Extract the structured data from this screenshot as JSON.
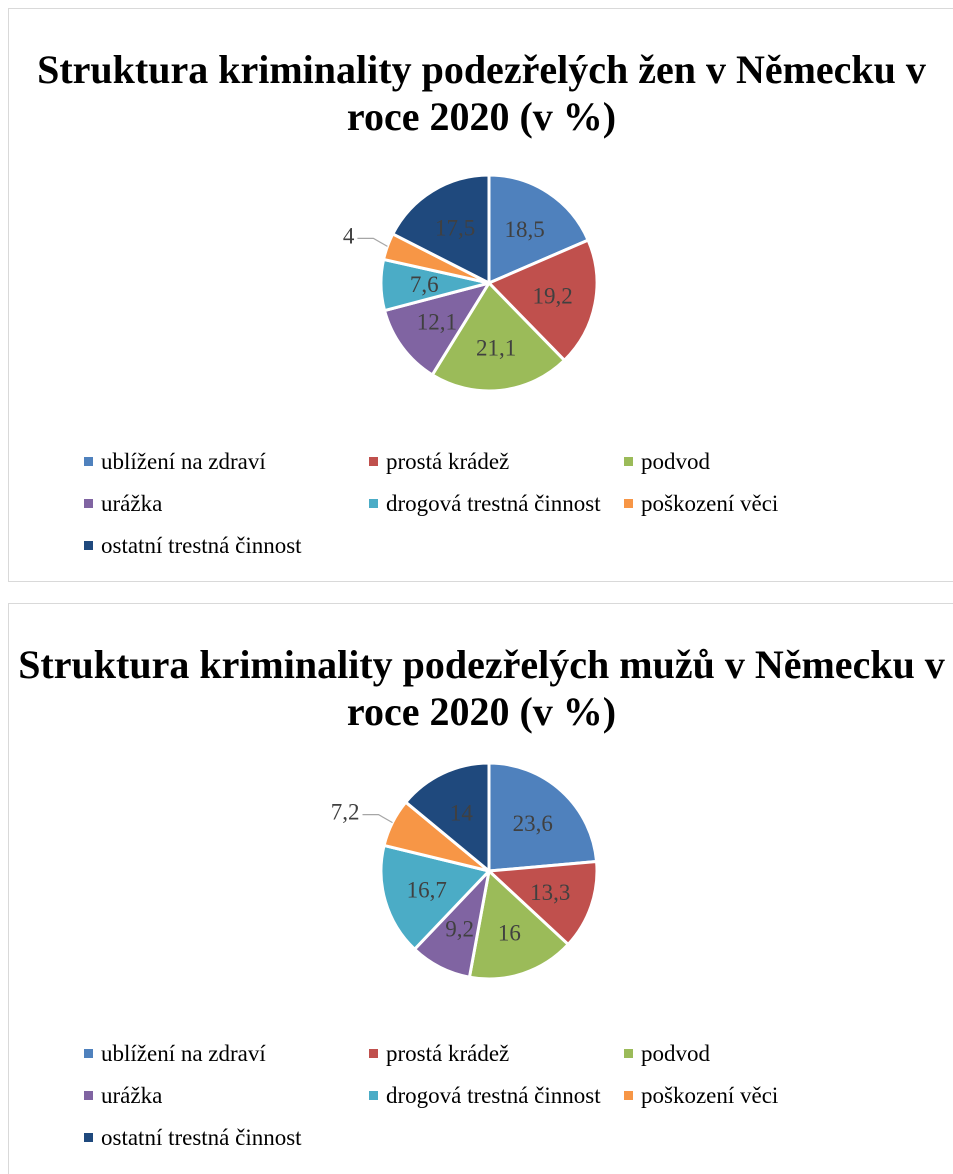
{
  "colors": {
    "ublizeni": "#4F81BD",
    "kradez": "#C0504D",
    "podvod": "#9BBB59",
    "urazka": "#8064A2",
    "drogova": "#4BACC6",
    "poskozeni": "#F79646",
    "ostatni": "#1F497D"
  },
  "chart_data": [
    {
      "type": "pie",
      "title": "Struktura kriminality podezřelých žen v Německu v roce 2020 (v %)",
      "categories": [
        "ublížení na zdraví",
        "prostá krádež",
        "podvod",
        "urážka",
        "drogová trestná činnost",
        "poškození věci",
        "ostatní trestná činnost"
      ],
      "values": [
        18.5,
        19.2,
        21.1,
        12.1,
        7.6,
        4,
        17.5
      ],
      "labels": [
        "18,5",
        "19,2",
        "21,1",
        "12,1",
        "7,6",
        "4",
        "17,5"
      ],
      "legend_position": "bottom"
    },
    {
      "type": "pie",
      "title": "Struktura kriminality podezřelých mužů v Německu v roce 2020 (v %)",
      "categories": [
        "ublížení na zdraví",
        "prostá krádež",
        "podvod",
        "urážka",
        "drogová trestná činnost",
        "poškození věci",
        "ostatní trestná činnost"
      ],
      "values": [
        23.6,
        13.3,
        16,
        9.2,
        16.7,
        7.2,
        14
      ],
      "labels": [
        "23,6",
        "13,3",
        "16",
        "9,2",
        "16,7",
        "7,2",
        "14"
      ],
      "legend_position": "bottom"
    }
  ]
}
